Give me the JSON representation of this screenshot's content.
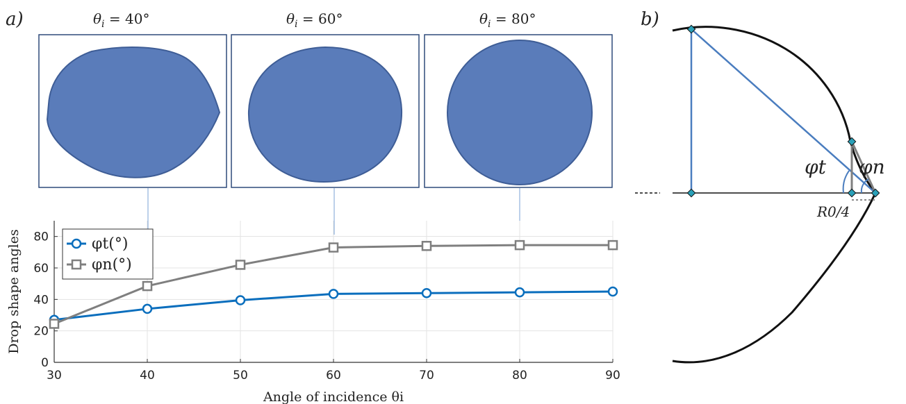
{
  "panel_labels": {
    "a": "a)",
    "b": "b)"
  },
  "photos": [
    {
      "label": "θi = 40°",
      "theta": 40,
      "color": "#5a7cba"
    },
    {
      "label": "θi = 60°",
      "theta": 60,
      "color": "#5a7cba"
    },
    {
      "label": "θi = 80°",
      "theta": 80,
      "color": "#5a7cba"
    }
  ],
  "chart_data": {
    "type": "line",
    "x": [
      30,
      40,
      50,
      60,
      70,
      80,
      90
    ],
    "xlim": [
      30,
      90
    ],
    "ylim": [
      0,
      90
    ],
    "xticks": [
      30,
      40,
      50,
      60,
      70,
      80,
      90
    ],
    "yticks": [
      0,
      20,
      40,
      60,
      80
    ],
    "xlabel": "Angle of incidence θi",
    "ylabel": "Drop shape angles",
    "grid": true,
    "legend_position": "top-left",
    "series": [
      {
        "name": "φt(°)",
        "marker": "circle",
        "color": "#0a6ebd",
        "values": [
          27,
          34,
          39.5,
          43.5,
          44,
          44.5,
          45
        ]
      },
      {
        "name": "φn(°)",
        "marker": "square",
        "color": "#7f7f7f",
        "values": [
          24.5,
          48.5,
          62,
          73,
          74,
          74.5,
          74.5
        ]
      }
    ]
  },
  "diagram": {
    "phi_t": "φt",
    "phi_n": "φn",
    "radius_label": "R0/4",
    "outline_color": "#111111",
    "triangle_color": "#4a7dbf",
    "small_triangle_color": "#808080"
  }
}
